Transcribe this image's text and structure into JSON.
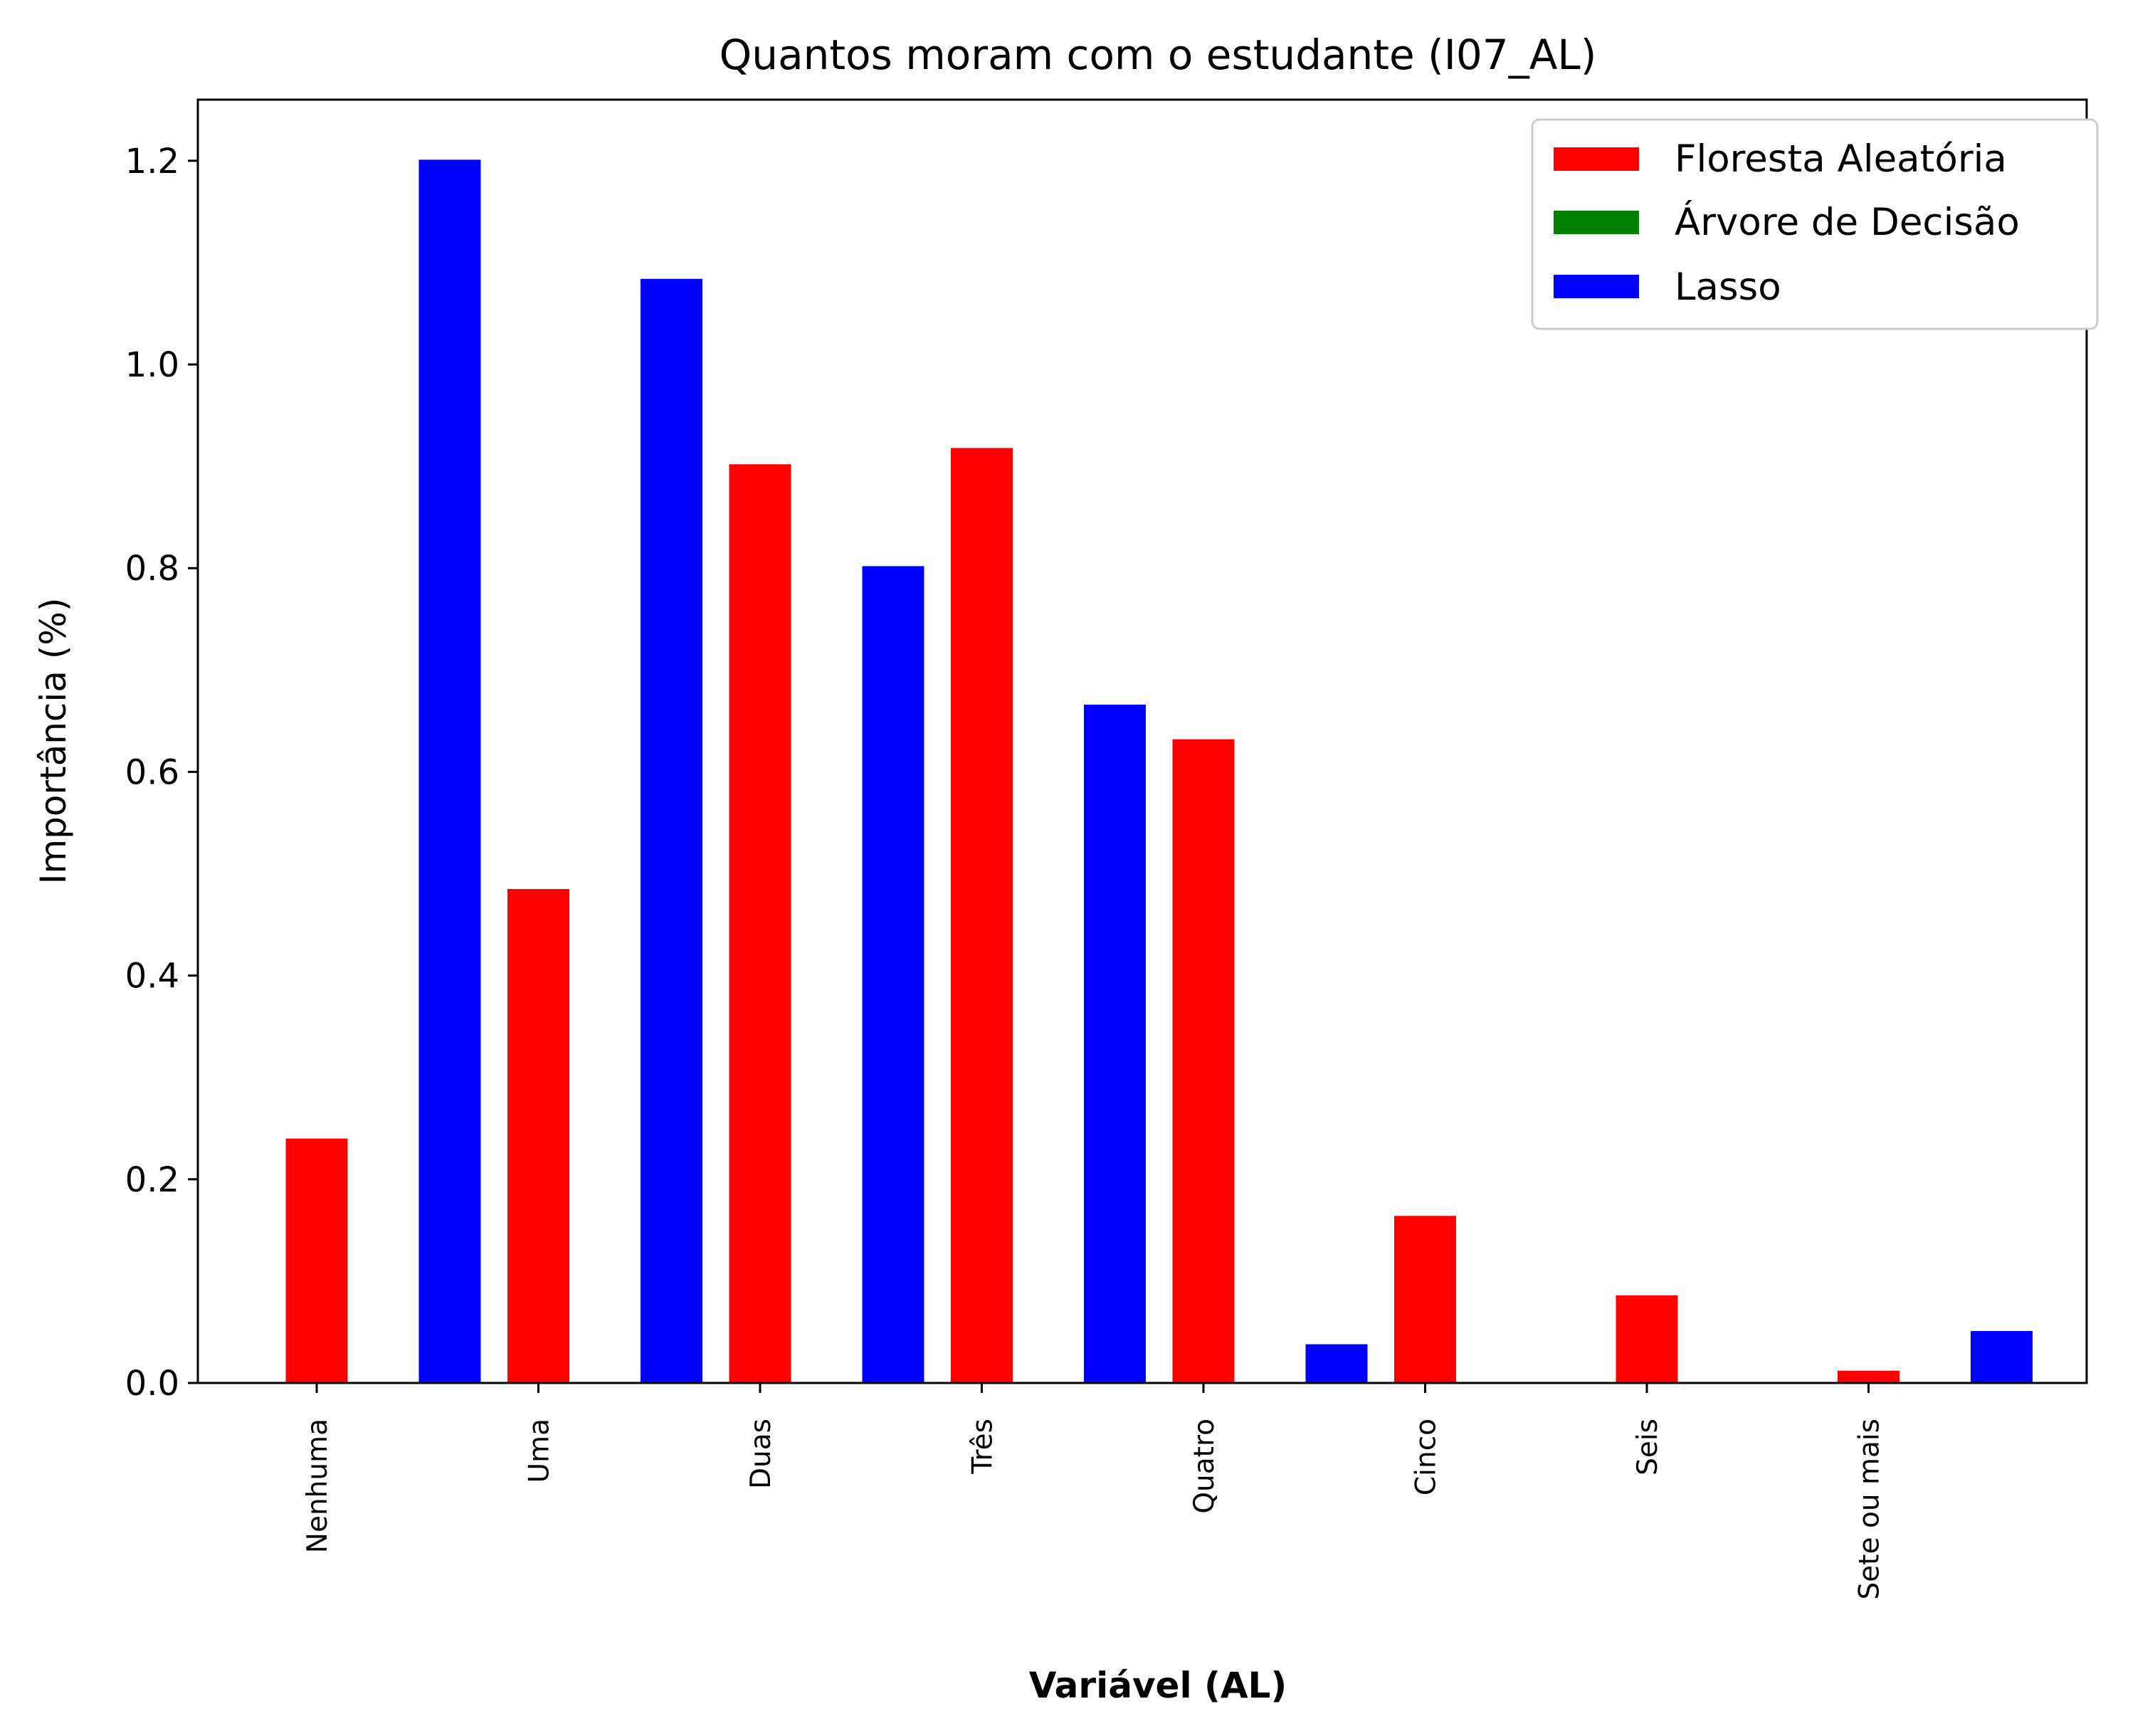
{
  "chart_data": {
    "type": "bar",
    "title": "Quantos moram com o estudante (I07_AL)",
    "xlabel": "Variável (AL)",
    "ylabel": "Importância (%)",
    "ylim": [
      0,
      1.26
    ],
    "yticks": [
      "0.0",
      "0.2",
      "0.4",
      "0.6",
      "0.8",
      "1.0",
      "1.2"
    ],
    "categories": [
      "Nenhuma",
      "Uma",
      "Duas",
      "Três",
      "Quatro",
      "Cinco",
      "Seis",
      "Sete ou mais"
    ],
    "legend_position": "top-right",
    "series": [
      {
        "name": "Floresta Aleatória",
        "color": "#ff0000",
        "values": [
          0.24,
          0.485,
          0.902,
          0.918,
          0.632,
          0.164,
          0.086,
          0.012
        ]
      },
      {
        "name": "Árvore de Decisão",
        "color": "#008000",
        "values": [
          0,
          0,
          0,
          0,
          0,
          0,
          0,
          0
        ]
      },
      {
        "name": "Lasso",
        "color": "#0000ff",
        "values": [
          1.201,
          1.084,
          0.802,
          0.666,
          0.038,
          0,
          0,
          0.051
        ]
      }
    ]
  }
}
